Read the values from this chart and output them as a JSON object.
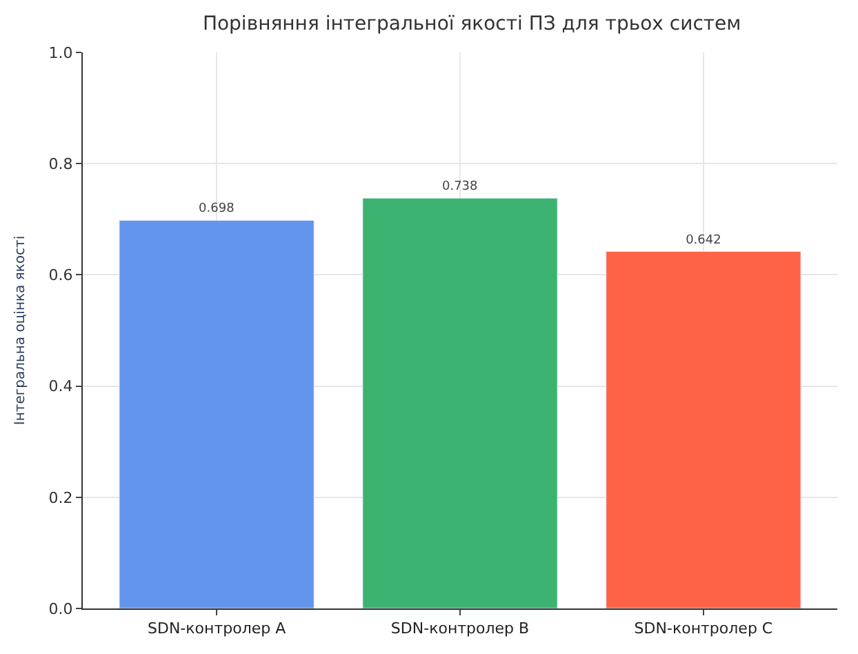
{
  "chart_data": {
    "type": "bar",
    "title": "Порівняння інтегральної якості ПЗ для трьох систем",
    "ylabel": "Інтегральна оцінка якості",
    "categories": [
      "SDN-контролер A",
      "SDN-контролер B",
      "SDN-контролер C"
    ],
    "values": [
      0.698,
      0.738,
      0.642
    ],
    "colors": [
      "#6495ed",
      "#3cb371",
      "#ff6347"
    ],
    "ylim": [
      0,
      1.0
    ],
    "yticks": [
      {
        "value": 0,
        "label": "0.0"
      },
      {
        "value": 0.2,
        "label": "0.2"
      },
      {
        "value": 0.4,
        "label": "0.4"
      },
      {
        "value": 0.6,
        "label": "0.6"
      },
      {
        "value": 0.8,
        "label": "0.8"
      },
      {
        "value": 1.0,
        "label": "1.0"
      }
    ],
    "grid": true,
    "data_labels": true
  }
}
